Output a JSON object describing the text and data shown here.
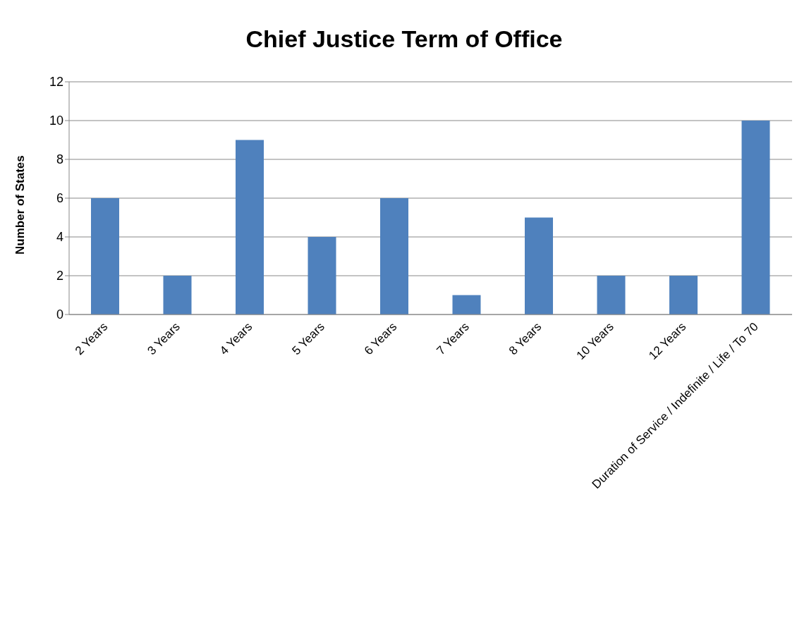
{
  "chart_data": {
    "type": "bar",
    "title": "Chief Justice Term of Office",
    "ylabel": "Number of States",
    "categories": [
      "2 Years",
      "3 Years",
      "4 Years",
      "5 Years",
      "6 Years",
      "7 Years",
      "8 Years",
      "10 Years",
      "12 Years",
      "Duration of Service / Indefinite / Life / To 70"
    ],
    "values": [
      6,
      2,
      9,
      4,
      6,
      1,
      5,
      2,
      2,
      10
    ],
    "color": "#4f81bd",
    "ylim": [
      0,
      12
    ],
    "yticks": [
      0,
      2,
      4,
      6,
      8,
      10,
      12
    ],
    "grid": "y",
    "legend": false
  }
}
